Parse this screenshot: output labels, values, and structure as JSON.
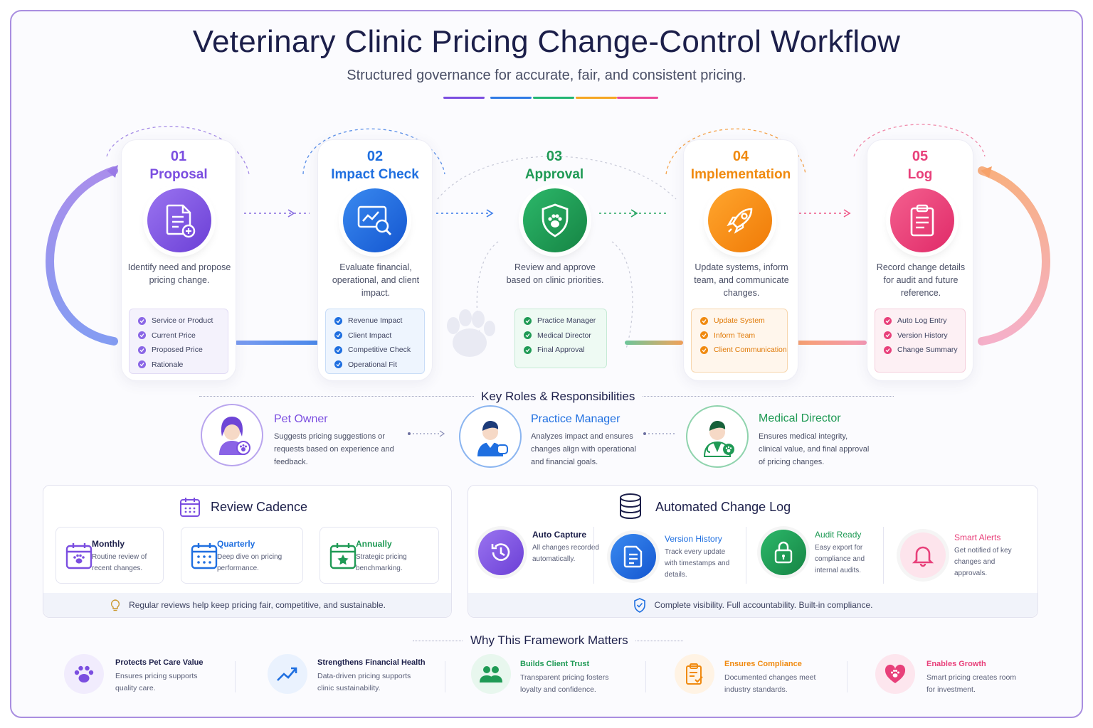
{
  "header": {
    "title": "Veterinary Clinic Pricing Change-Control Workflow",
    "subtitle": "Structured governance for accurate, fair, and consistent pricing.",
    "accent_colors": [
      "#7b4ee0",
      "#2f7ae5",
      "#22b573",
      "#f5a623",
      "#ec4899"
    ]
  },
  "steps": [
    {
      "num": "01",
      "name": "Proposal",
      "color": "#7b4ee0",
      "icon": "document-plus-icon",
      "desc": "Identify need and propose pricing change.",
      "checks": [
        "Service or Product",
        "Current Price",
        "Proposed Price",
        "Rationale"
      ]
    },
    {
      "num": "02",
      "name": "Impact Check",
      "color": "#1f6fe0",
      "icon": "chart-magnifier-icon",
      "desc": "Evaluate financial, operational, and client impact.",
      "checks": [
        "Revenue Impact",
        "Client Impact",
        "Competitive Check",
        "Operational Fit"
      ]
    },
    {
      "num": "03",
      "name": "Approval",
      "color": "#1f9a55",
      "icon": "shield-paw-icon",
      "desc": "Review and approve based on clinic priorities.",
      "checks": [
        "Practice Manager",
        "Medical Director",
        "Final Approval"
      ]
    },
    {
      "num": "04",
      "name": "Implementation",
      "color": "#f08a10",
      "icon": "rocket-icon",
      "desc": "Update systems, inform team, and communicate changes.",
      "checks": [
        "Update System",
        "Inform Team",
        "Client Communication"
      ]
    },
    {
      "num": "05",
      "name": "Log",
      "color": "#e8407a",
      "icon": "clipboard-icon",
      "desc": "Record change details for audit and future reference.",
      "checks": [
        "Auto Log Entry",
        "Version History",
        "Change Summary"
      ]
    }
  ],
  "roles": {
    "title": "Key Roles & Responsibilities",
    "items": [
      {
        "name": "Pet Owner",
        "color": "#7b4ee0",
        "desc": "Suggests pricing suggestions or requests based on experience and feedback."
      },
      {
        "name": "Practice Manager",
        "color": "#1f6fe0",
        "desc": "Analyzes impact and ensures changes align with operational and financial goals."
      },
      {
        "name": "Medical Director",
        "color": "#1f9a55",
        "desc": "Ensures medical integrity, clinical value, and final approval of pricing changes."
      }
    ]
  },
  "cadence": {
    "title": "Review Cadence",
    "items": [
      {
        "title": "Monthly",
        "desc": "Routine review of recent changes.",
        "color": "#1c1f4a"
      },
      {
        "title": "Quarterly",
        "desc": "Deep dive on pricing performance.",
        "color": "#1f6fe0"
      },
      {
        "title": "Annually",
        "desc": "Strategic pricing benchmarking.",
        "color": "#1f9a55"
      }
    ],
    "footer": "Regular reviews help keep pricing fair, competitive, and sustainable."
  },
  "changelog": {
    "title": "Automated Change Log",
    "items": [
      {
        "title": "Auto Capture",
        "desc": "All changes recorded automatically.",
        "color": "#7b4ee0"
      },
      {
        "title": "Version History",
        "desc": "Track every update with timestamps and details.",
        "color": "#1f6fe0"
      },
      {
        "title": "Audit Ready",
        "desc": "Easy export for compliance and internal audits.",
        "color": "#1f9a55"
      },
      {
        "title": "Smart Alerts",
        "desc": "Get notified of key changes and approvals.",
        "color": "#e8407a"
      }
    ],
    "footer": "Complete visibility. Full accountability. Built-in compliance."
  },
  "why": {
    "title": "Why This Framework Matters",
    "items": [
      {
        "title": "Protects Pet Care Value",
        "desc": "Ensures pricing supports quality care.",
        "color": "#1c1f4a"
      },
      {
        "title": "Strengthens Financial Health",
        "desc": "Data-driven pricing supports clinic sustainability.",
        "color": "#1c1f4a"
      },
      {
        "title": "Builds Client Trust",
        "desc": "Transparent pricing fosters loyalty and confidence.",
        "color": "#1f9a55"
      },
      {
        "title": "Ensures Compliance",
        "desc": "Documented changes meet industry standards.",
        "color": "#f08a10"
      },
      {
        "title": "Enables Growth",
        "desc": "Smart pricing creates room for investment.",
        "color": "#e8407a"
      }
    ]
  }
}
